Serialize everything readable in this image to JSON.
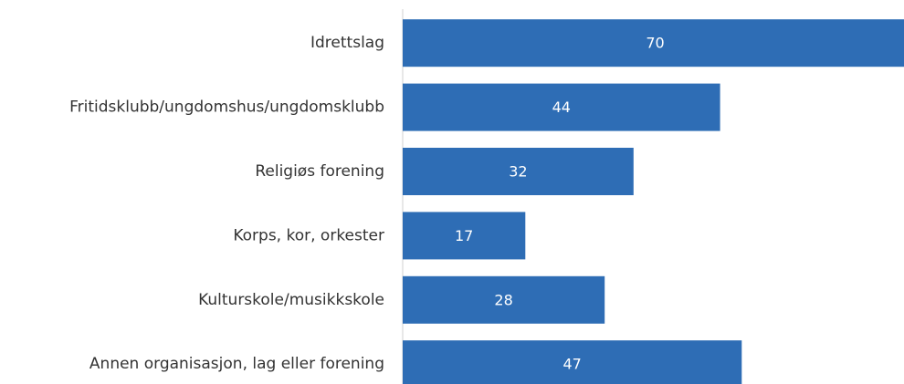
{
  "chart_data": {
    "type": "hbar",
    "categories": [
      "Idrettslag",
      "Fritidsklubb/ungdomshus/ungdomsklubb",
      "Religiøs forening",
      "Korps, kor, orkester",
      "Kulturskole/musikkskole",
      "Annen organisasjon, lag eller forening"
    ],
    "values": [
      70,
      44,
      32,
      17,
      28,
      47
    ],
    "color": "#2e6db5"
  }
}
